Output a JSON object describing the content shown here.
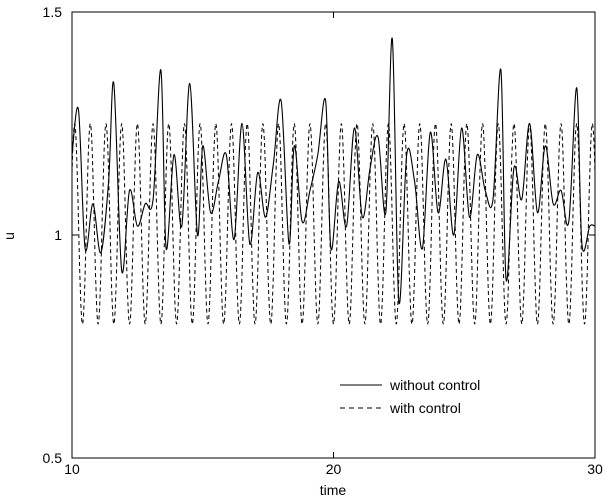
{
  "chart_data": {
    "type": "line",
    "title": "",
    "xlabel": "time",
    "ylabel": "u",
    "xlim": [
      10,
      30
    ],
    "ylim": [
      0.5,
      1.5
    ],
    "xticks": [
      10,
      20,
      30
    ],
    "xtick_labels": [
      "10",
      "20",
      "30"
    ],
    "yticks": [
      0.5,
      1,
      1.5
    ],
    "ytick_labels": [
      "0.5",
      "1",
      "1.5"
    ],
    "grid": false,
    "legend_position": "bottom-right",
    "series": [
      {
        "name": "without control",
        "style": "solid",
        "color": "#000000",
        "x": [
          10.0,
          10.25,
          10.5,
          10.8,
          11.1,
          11.4,
          11.6,
          11.9,
          12.2,
          12.5,
          12.8,
          13.1,
          13.4,
          13.6,
          13.9,
          14.2,
          14.5,
          14.8,
          15.0,
          15.3,
          15.6,
          15.9,
          16.2,
          16.5,
          16.8,
          17.1,
          17.4,
          17.7,
          18.0,
          18.3,
          18.5,
          18.8,
          19.1,
          19.4,
          19.7,
          19.9,
          20.2,
          20.5,
          20.8,
          21.1,
          21.4,
          21.7,
          22.0,
          22.25,
          22.5,
          22.8,
          23.1,
          23.4,
          23.7,
          24.0,
          24.3,
          24.6,
          24.9,
          25.2,
          25.5,
          25.8,
          26.1,
          26.4,
          26.6,
          26.9,
          27.2,
          27.5,
          27.8,
          28.1,
          28.4,
          28.7,
          29.0,
          29.3,
          29.5,
          29.8,
          30.0
        ],
        "y": [
          1.18,
          1.28,
          0.97,
          1.07,
          0.96,
          1.12,
          1.34,
          0.92,
          1.1,
          1.02,
          1.07,
          1.08,
          1.37,
          0.97,
          1.18,
          1.02,
          1.34,
          1.0,
          1.2,
          1.05,
          1.12,
          1.18,
          0.99,
          1.25,
          0.98,
          1.14,
          1.04,
          1.16,
          1.3,
          0.98,
          1.2,
          1.03,
          1.1,
          1.18,
          1.3,
          0.97,
          1.12,
          1.02,
          1.24,
          1.04,
          1.15,
          1.22,
          1.05,
          1.44,
          0.85,
          1.18,
          1.12,
          0.97,
          1.23,
          1.05,
          1.17,
          1.0,
          1.24,
          1.04,
          1.18,
          1.1,
          1.08,
          1.37,
          0.9,
          1.15,
          1.08,
          1.25,
          1.05,
          1.2,
          1.07,
          1.1,
          1.03,
          1.33,
          0.98,
          1.02,
          1.02
        ]
      },
      {
        "name": "with control",
        "style": "dashed",
        "color": "#000000",
        "period": 0.6,
        "min": 0.8,
        "max": 1.25,
        "phase": 0.1
      }
    ],
    "legend": [
      "without control",
      "with control"
    ]
  }
}
